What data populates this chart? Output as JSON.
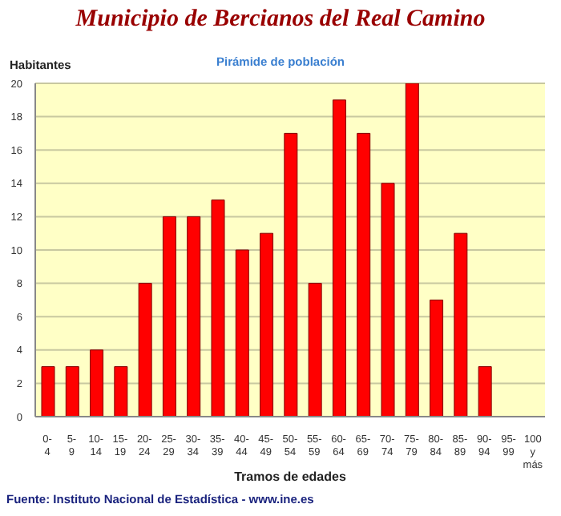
{
  "chart_data": {
    "type": "bar",
    "title": "Municipio de Bercianos del Real Camino",
    "subtitle": "Pirámide de población",
    "ylabel": "Habitantes",
    "xlabel": "Tramos de edades",
    "annotations": [
      "Fuente: Instituto Nacional de Estadística - www.ine.es"
    ],
    "categories": [
      "0-4",
      "5-9",
      "10-14",
      "15-19",
      "20-24",
      "25-29",
      "30-34",
      "35-39",
      "40-44",
      "45-49",
      "50-54",
      "55-59",
      "60-64",
      "65-69",
      "70-74",
      "75-79",
      "80-84",
      "85-89",
      "90-94",
      "95-99",
      "100 y más"
    ],
    "values": [
      3,
      3,
      4,
      3,
      8,
      12,
      12,
      13,
      10,
      11,
      17,
      8,
      19,
      17,
      14,
      20,
      7,
      11,
      3,
      0,
      0
    ],
    "color": "#ff0000",
    "ylim": [
      0,
      20
    ],
    "yticks": [
      0,
      2,
      4,
      6,
      8,
      10,
      12,
      14,
      16,
      18,
      20
    ],
    "grid": "y"
  }
}
